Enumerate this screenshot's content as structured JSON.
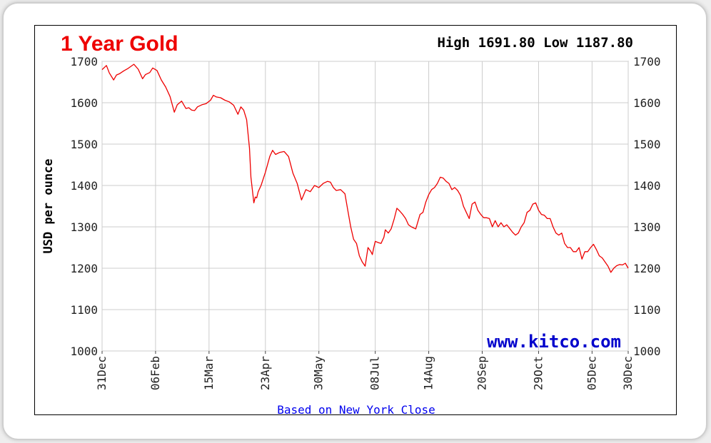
{
  "chart_data": {
    "type": "line",
    "title": "1 Year Gold",
    "high_low": "High 1691.80 Low 1187.80",
    "ylabel": "USD per ounce",
    "xlabel": "Based on New York Close",
    "watermark": "www.kitco.com",
    "ylim": [
      1000,
      1700
    ],
    "y_ticks": [
      "1700",
      "1600",
      "1500",
      "1400",
      "1300",
      "1200",
      "1100",
      "1000"
    ],
    "y_tick_values": [
      1700,
      1600,
      1500,
      1400,
      1300,
      1200,
      1100,
      1000
    ],
    "x_ticks": [
      "31Dec",
      "06Feb",
      "15Mar",
      "23Apr",
      "30May",
      "08Jul",
      "14Aug",
      "20Sep",
      "29Oct",
      "05Dec",
      "30Dec"
    ],
    "x_tick_days": [
      0,
      37,
      74,
      113,
      150,
      189,
      226,
      263,
      302,
      339,
      364
    ],
    "x_range_days": [
      0,
      364
    ],
    "grid": true,
    "color": "#ee0000",
    "series": [
      {
        "x": [
          0,
          3,
          5,
          8,
          10,
          12,
          15,
          18,
          22,
          25,
          28,
          30,
          33,
          35,
          38,
          41,
          44,
          47,
          50,
          52,
          55,
          58,
          60,
          62,
          64,
          66,
          69,
          72,
          75,
          77,
          79,
          82,
          85,
          88,
          91,
          94,
          96,
          98,
          100,
          102,
          103,
          105,
          106,
          107,
          108,
          110,
          113,
          116,
          118,
          120,
          123,
          126,
          129,
          132,
          135,
          138,
          141,
          144,
          147,
          150,
          153,
          156,
          158,
          160,
          162,
          165,
          168,
          170,
          172,
          174,
          176,
          178,
          180,
          182,
          184,
          186,
          187,
          188,
          189,
          191,
          193,
          195,
          196,
          198,
          200,
          202,
          204,
          206,
          208,
          210,
          212,
          214,
          217,
          220,
          222,
          224,
          226,
          228,
          230,
          232,
          234,
          236,
          238,
          240,
          242,
          244,
          246,
          248,
          250,
          252,
          254,
          256,
          258,
          260,
          262,
          264,
          266,
          268,
          270,
          272,
          274,
          276,
          278,
          280,
          282,
          284,
          286,
          288,
          290,
          292,
          294,
          296,
          298,
          300,
          302,
          304,
          306,
          308,
          310,
          312,
          314,
          316,
          318,
          320,
          322,
          324,
          326,
          328,
          330,
          332,
          334,
          336,
          338,
          340,
          342,
          344,
          346,
          348,
          350,
          352,
          354,
          356,
          358,
          360,
          362,
          364
        ],
        "values": [
          1680,
          1690,
          1672,
          1655,
          1667,
          1670,
          1677,
          1683,
          1693,
          1681,
          1658,
          1668,
          1673,
          1684,
          1678,
          1655,
          1638,
          1615,
          1577,
          1595,
          1604,
          1586,
          1588,
          1582,
          1581,
          1590,
          1595,
          1598,
          1606,
          1618,
          1614,
          1612,
          1606,
          1602,
          1594,
          1572,
          1590,
          1582,
          1559,
          1490,
          1420,
          1358,
          1372,
          1370,
          1385,
          1400,
          1432,
          1470,
          1485,
          1475,
          1480,
          1482,
          1470,
          1430,
          1405,
          1365,
          1390,
          1385,
          1400,
          1395,
          1405,
          1410,
          1408,
          1395,
          1388,
          1390,
          1380,
          1340,
          1300,
          1270,
          1260,
          1230,
          1215,
          1205,
          1250,
          1240,
          1233,
          1250,
          1265,
          1262,
          1260,
          1275,
          1293,
          1285,
          1295,
          1318,
          1345,
          1338,
          1330,
          1320,
          1305,
          1300,
          1295,
          1330,
          1335,
          1360,
          1378,
          1390,
          1395,
          1405,
          1420,
          1418,
          1410,
          1405,
          1390,
          1395,
          1388,
          1376,
          1350,
          1335,
          1320,
          1355,
          1360,
          1340,
          1330,
          1322,
          1322,
          1320,
          1300,
          1315,
          1300,
          1310,
          1300,
          1305,
          1296,
          1287,
          1280,
          1285,
          1300,
          1310,
          1335,
          1340,
          1355,
          1358,
          1340,
          1330,
          1328,
          1320,
          1320,
          1300,
          1285,
          1280,
          1285,
          1260,
          1250,
          1250,
          1240,
          1240,
          1250,
          1222,
          1240,
          1240,
          1250,
          1258,
          1245,
          1230,
          1225,
          1215,
          1205,
          1190,
          1200,
          1206,
          1209,
          1208,
          1212,
          1200
        ]
      }
    ]
  }
}
